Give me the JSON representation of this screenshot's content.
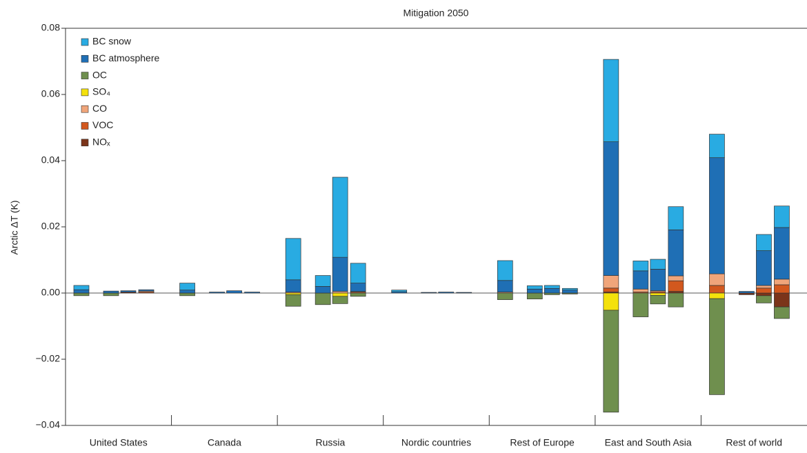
{
  "chart_data": {
    "type": "stacked_bar",
    "title": "Mitigation 2050",
    "y_label": "Arctic ΔT (K)",
    "categories": [
      "United States",
      "Canada",
      "Russia",
      "Nordic countries",
      "Rest of Europe",
      "East and South Asia",
      "Rest of world"
    ],
    "ylim": [
      -0.04,
      0.08
    ],
    "yticks": [
      {
        "value": -0.04,
        "label": "−0.04"
      },
      {
        "value": -0.02,
        "label": "−0.02"
      },
      {
        "value": 0,
        "label": "0.00"
      },
      0.02,
      0.04,
      0.06,
      0.08
    ],
    "legend": "upper left",
    "stack_order": [
      6,
      5,
      4,
      3,
      2,
      1,
      0
    ],
    "series": [
      {
        "name": "BC snow",
        "color": "#29abe2",
        "values": [
          [
            0.0013,
            0,
            0,
            0
          ],
          [
            0.0021,
            0,
            0,
            0
          ],
          [
            0.0125,
            0.0033,
            0.0242,
            0.006
          ],
          [
            0.0005,
            0,
            0,
            0
          ],
          [
            0.006,
            0.001,
            0.0009,
            0.0005
          ],
          [
            0.0249,
            0.003,
            0.003,
            0.007
          ],
          [
            0.0071,
            0,
            0.0049,
            0.0065
          ]
        ]
      },
      {
        "name": "BC atmosphere",
        "color": "#1f6fb5",
        "values": [
          [
            0.001,
            0.0006,
            0.0004,
            0.0004
          ],
          [
            0.0009,
            0.0003,
            0.0007,
            0.0003
          ],
          [
            0.0037,
            0.002,
            0.0103,
            0.0025
          ],
          [
            0.0004,
            0.0002,
            0.0003,
            0.0002
          ],
          [
            0.0035,
            0.0012,
            0.0014,
            0.0009
          ],
          [
            0.0404,
            0.0055,
            0.0065,
            0.0139
          ],
          [
            0.0351,
            0.0005,
            0.0105,
            0.0156
          ]
        ]
      },
      {
        "name": "OC",
        "color": "#6f8f4e",
        "values": [
          [
            -0.0008,
            -0.0008,
            0,
            0
          ],
          [
            -0.0008,
            0,
            0,
            0
          ],
          [
            -0.0035,
            -0.0035,
            -0.0022,
            -0.001
          ],
          [
            0,
            0,
            0,
            0
          ],
          [
            -0.002,
            -0.0018,
            -0.0005,
            -0.0003
          ],
          [
            -0.0308,
            -0.0072,
            -0.0026,
            -0.0042
          ],
          [
            -0.029,
            0,
            -0.0022,
            -0.0035
          ]
        ]
      },
      {
        "name": "SO₄",
        "color": "#f4e10c",
        "values": [
          [
            0,
            0,
            0,
            0
          ],
          [
            0,
            0,
            0,
            0
          ],
          [
            -0.0005,
            0,
            -0.001,
            0
          ],
          [
            0,
            0,
            0,
            0
          ],
          [
            0,
            0,
            0,
            0
          ],
          [
            -0.0052,
            0,
            -0.0007,
            0
          ],
          [
            -0.0017,
            0,
            0,
            0
          ]
        ]
      },
      {
        "name": "CO",
        "color": "#f0a57a",
        "values": [
          [
            0,
            0,
            0,
            0.0003
          ],
          [
            0,
            0,
            0,
            0
          ],
          [
            0.0003,
            0,
            0.0005,
            0.0002
          ],
          [
            0,
            0,
            0,
            0
          ],
          [
            0.0003,
            0,
            0,
            0
          ],
          [
            0.0038,
            0.0009,
            0.0003,
            0.0015
          ],
          [
            0.0035,
            0,
            0.0008,
            0.0017
          ]
        ]
      },
      {
        "name": "VOC",
        "color": "#d2581e",
        "values": [
          [
            0,
            0,
            0,
            0.0003
          ],
          [
            0,
            0,
            0,
            0
          ],
          [
            0,
            0,
            0,
            0.0003
          ],
          [
            0,
            0,
            0,
            0
          ],
          [
            0,
            0,
            0,
            0
          ],
          [
            0.0012,
            0.0003,
            0.0004,
            0.0032
          ],
          [
            0.0023,
            0,
            0.0015,
            0.0025
          ]
        ]
      },
      {
        "name": "NOₓ",
        "color": "#7b341a",
        "values": [
          [
            0,
            0,
            0.0003,
            0
          ],
          [
            0,
            0,
            0,
            0
          ],
          [
            0,
            0,
            0,
            0
          ],
          [
            0,
            0,
            0,
            0
          ],
          [
            0,
            0,
            0,
            0
          ],
          [
            0.0003,
            0,
            0,
            0.0005
          ],
          [
            0,
            -0.0005,
            -0.0008,
            -0.0042
          ]
        ]
      }
    ]
  }
}
